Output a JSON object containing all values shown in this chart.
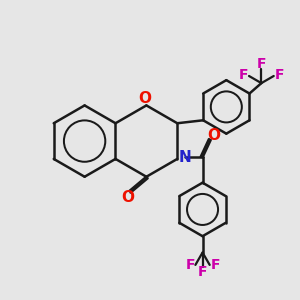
{
  "background_color": "#e6e6e6",
  "bond_color": "#1a1a1a",
  "oxygen_color": "#ee1100",
  "nitrogen_color": "#2222cc",
  "fluorine_color": "#cc00aa",
  "line_width": 1.8,
  "figsize": [
    3.0,
    3.0
  ],
  "dpi": 100,
  "xlim": [
    0.0,
    10.0
  ],
  "ylim": [
    0.5,
    10.5
  ]
}
